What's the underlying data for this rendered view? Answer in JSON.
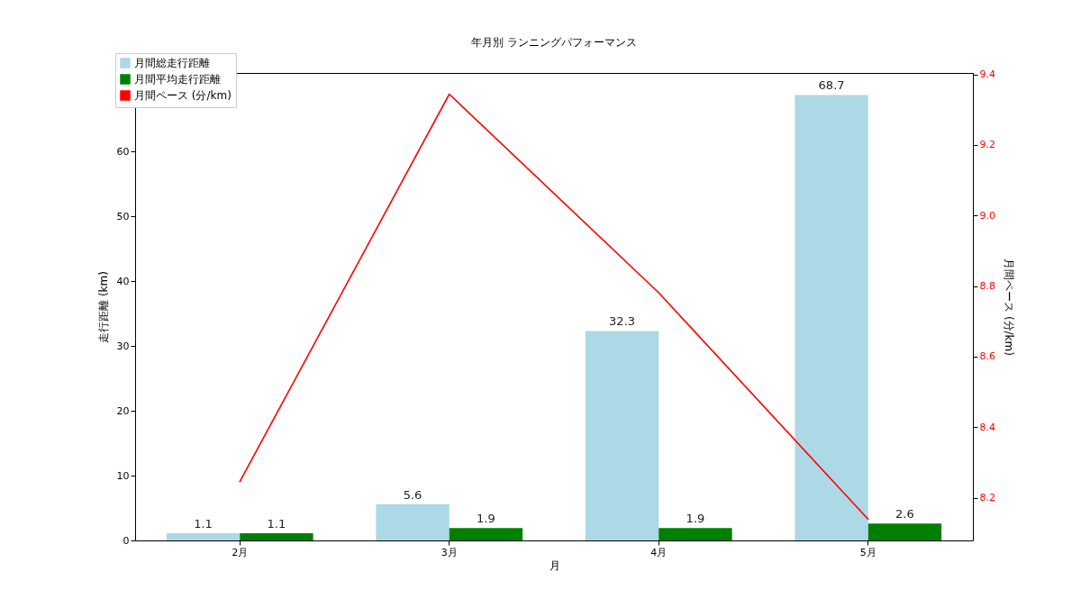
{
  "chart_data": {
    "type": "bar",
    "title": "年月別 ランニングパフォーマンス",
    "xlabel": "月",
    "ylabel": "走行距離 (km)",
    "y2label": "月間ペース (分/km)",
    "categories": [
      "2月",
      "3月",
      "4月",
      "5月"
    ],
    "series": [
      {
        "name": "月間総走行距離",
        "color": "#add8e6",
        "values": [
          1.1,
          5.6,
          32.3,
          68.7
        ],
        "value_labels": [
          "1.1",
          "5.6",
          "32.3",
          "68.7"
        ]
      },
      {
        "name": "月間平均走行距離",
        "color": "#008000",
        "values": [
          1.1,
          1.9,
          1.9,
          2.6
        ],
        "value_labels": [
          "1.1",
          "1.9",
          "1.9",
          "2.6"
        ]
      },
      {
        "name": "月間ペース (分/km)",
        "color": "#ff0000",
        "type": "line",
        "axis": "y2",
        "values": [
          8.246,
          9.344,
          8.781,
          8.139
        ]
      }
    ],
    "ylim": [
      0,
      72.1
    ],
    "yticks": [
      0,
      10,
      20,
      30,
      40,
      50,
      60
    ],
    "y2lim": [
      8.079,
      9.404
    ],
    "y2ticks": [
      8.2,
      8.4,
      8.6,
      8.8,
      {
        "value": 9.0,
        "label": "9.0"
      },
      9.2,
      9.4
    ],
    "legend": "top left",
    "grid": false
  }
}
